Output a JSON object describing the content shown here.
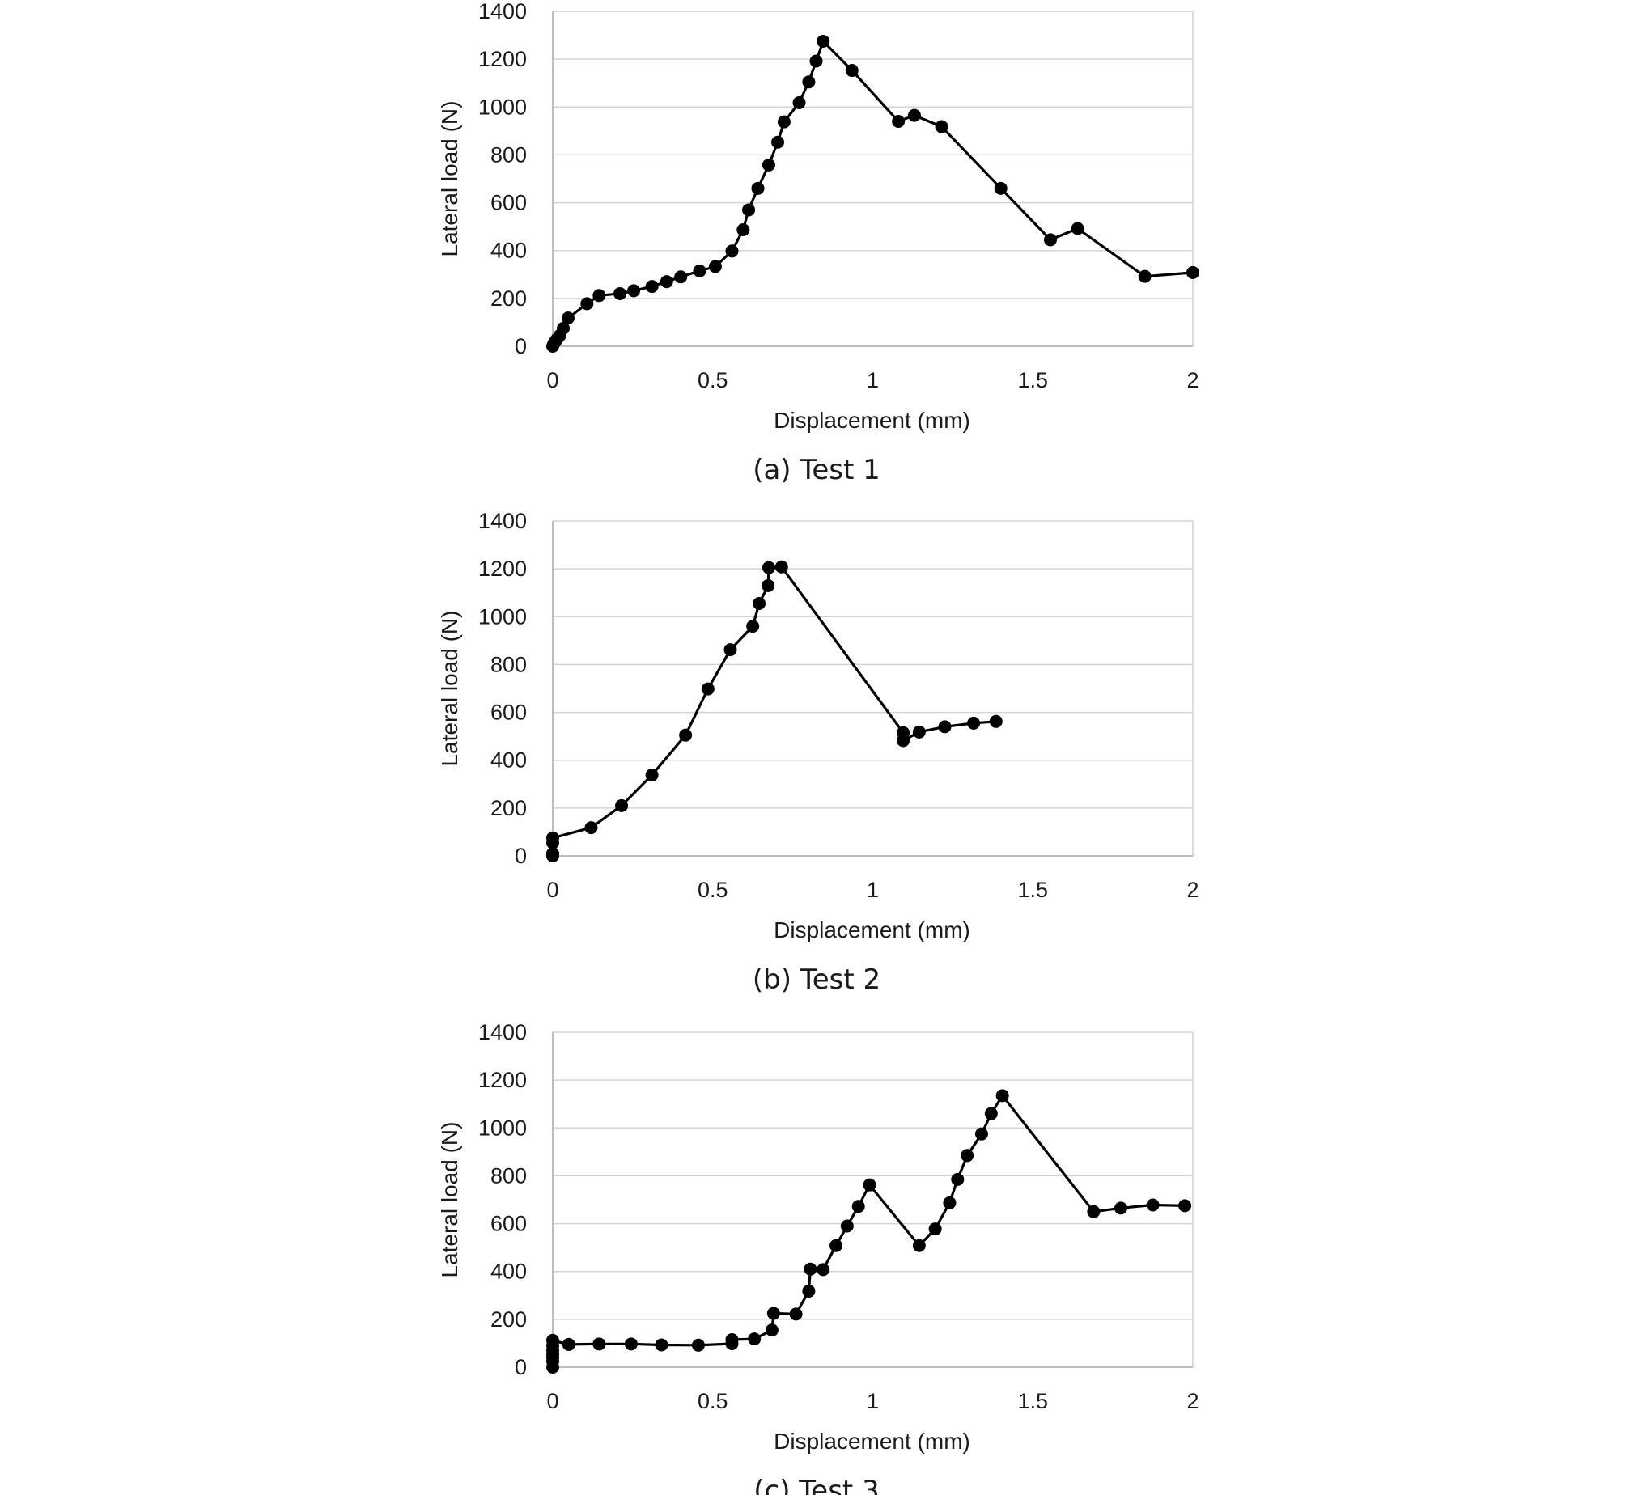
{
  "chart_data": [
    {
      "type": "line",
      "title": "",
      "caption": "(a)  Test  1",
      "xlabel": "Displacement (mm)",
      "ylabel": "Lateral load (N)",
      "xlim": [
        0,
        2
      ],
      "ylim": [
        0,
        1400
      ],
      "xticks": [
        0,
        0.5,
        1,
        1.5,
        2
      ],
      "xtick_labels": [
        "0",
        "0.5",
        "1",
        "1.5",
        "2"
      ],
      "yticks": [
        0,
        200,
        400,
        600,
        800,
        1000,
        1200,
        1400
      ],
      "ytick_labels": [
        "0",
        "200",
        "400",
        "600",
        "800",
        "1000",
        "1200",
        "1400"
      ],
      "grid": true,
      "series": [
        {
          "name": "Test 1",
          "x": [
            0,
            0.003,
            0.008,
            0.013,
            0.022,
            0.033,
            0.048,
            0.107,
            0.145,
            0.21,
            0.253,
            0.31,
            0.356,
            0.4,
            0.459,
            0.508,
            0.56,
            0.595,
            0.612,
            0.641,
            0.675,
            0.703,
            0.723,
            0.77,
            0.8,
            0.823,
            0.845,
            0.935,
            1.08,
            1.13,
            1.215,
            1.4,
            1.555,
            1.64,
            1.85,
            2.0
          ],
          "y": [
            0,
            10,
            20,
            30,
            45,
            75,
            118,
            178,
            212,
            220,
            232,
            250,
            270,
            290,
            315,
            333,
            398,
            487,
            570,
            660,
            758,
            853,
            938,
            1018,
            1105,
            1192,
            1275,
            1153,
            940,
            965,
            918,
            660,
            445,
            492,
            292,
            308
          ]
        }
      ]
    },
    {
      "type": "line",
      "title": "",
      "caption": "(b)  Test  2",
      "xlabel": "Displacement (mm)",
      "ylabel": "Lateral load (N)",
      "xlim": [
        0,
        2
      ],
      "ylim": [
        0,
        1400
      ],
      "xticks": [
        0,
        0.5,
        1,
        1.5,
        2
      ],
      "xtick_labels": [
        "0",
        "0.5",
        "1",
        "1.5",
        "2"
      ],
      "yticks": [
        0,
        200,
        400,
        600,
        800,
        1000,
        1200,
        1400
      ],
      "ytick_labels": [
        "0",
        "200",
        "400",
        "600",
        "800",
        "1000",
        "1200",
        "1400"
      ],
      "grid": true,
      "series": [
        {
          "name": "Test 2",
          "x": [
            0,
            0,
            0,
            0,
            0.12,
            0.215,
            0.31,
            0.415,
            0.485,
            0.555,
            0.625,
            0.645,
            0.673,
            0.675,
            0.715,
            1.095,
            1.095,
            1.145,
            1.225,
            1.315,
            1.385
          ],
          "y": [
            0,
            10,
            55,
            75,
            118,
            210,
            338,
            505,
            698,
            862,
            960,
            1055,
            1130,
            1205,
            1208,
            515,
            482,
            518,
            540,
            555,
            562
          ]
        }
      ]
    },
    {
      "type": "line",
      "title": "",
      "caption": "(c)  Test  3",
      "xlabel": "Displacement (mm)",
      "ylabel": "Lateral load (N)",
      "xlim": [
        0,
        2
      ],
      "ylim": [
        0,
        1400
      ],
      "xticks": [
        0,
        0.5,
        1,
        1.5,
        2
      ],
      "xtick_labels": [
        "0",
        "0.5",
        "1",
        "1.5",
        "2"
      ],
      "yticks": [
        0,
        200,
        400,
        600,
        800,
        1000,
        1200,
        1400
      ],
      "ytick_labels": [
        "0",
        "200",
        "400",
        "600",
        "800",
        "1000",
        "1200",
        "1400"
      ],
      "grid": true,
      "series": [
        {
          "name": "Test 3",
          "x": [
            0,
            0,
            0,
            0,
            0,
            0,
            0,
            0.05,
            0.145,
            0.245,
            0.34,
            0.455,
            0.56,
            0.56,
            0.63,
            0.685,
            0.69,
            0.76,
            0.8,
            0.805,
            0.845,
            0.885,
            0.92,
            0.955,
            0.99,
            1.145,
            1.195,
            1.24,
            1.265,
            1.295,
            1.34,
            1.37,
            1.405,
            1.69,
            1.775,
            1.875,
            1.975
          ],
          "y": [
            0,
            25,
            40,
            55,
            70,
            90,
            112,
            95,
            97,
            97,
            93,
            92,
            98,
            115,
            118,
            155,
            225,
            222,
            318,
            410,
            408,
            508,
            590,
            672,
            762,
            508,
            578,
            687,
            785,
            885,
            975,
            1060,
            1135,
            650,
            665,
            678,
            675
          ]
        }
      ]
    }
  ]
}
